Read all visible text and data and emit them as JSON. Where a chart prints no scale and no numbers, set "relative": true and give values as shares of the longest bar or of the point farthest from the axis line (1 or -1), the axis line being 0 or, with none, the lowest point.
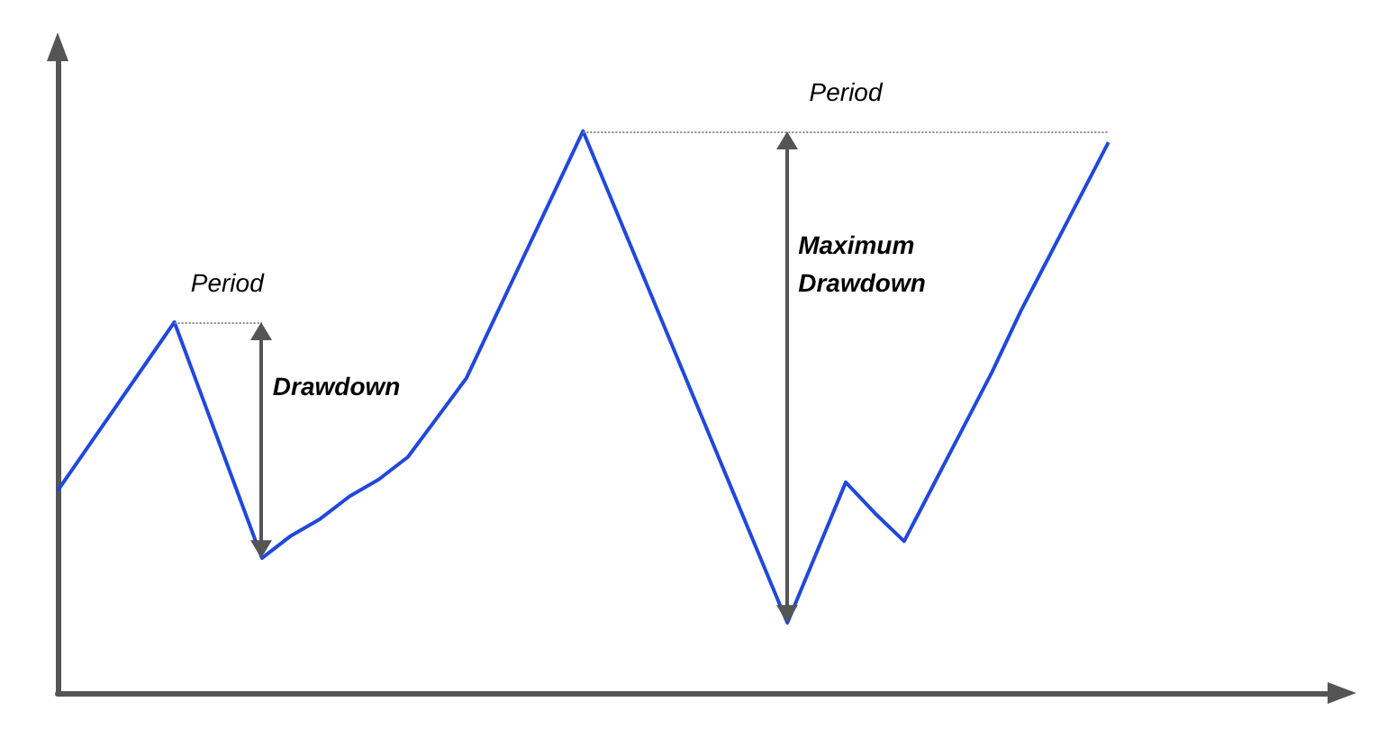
{
  "chart_data": {
    "type": "line",
    "relative": true,
    "grid": false,
    "marker": "none",
    "line_style": "solid",
    "categories": [
      null,
      null,
      null,
      null,
      null,
      null,
      null,
      null,
      null,
      null,
      null,
      null,
      null,
      null,
      null,
      null,
      null,
      null,
      null,
      null,
      null,
      null,
      null,
      null,
      null,
      null,
      null,
      null,
      null,
      null,
      null,
      null,
      null,
      null,
      null,
      null,
      null,
      null,
      null,
      null,
      null,
      null,
      null,
      null,
      null
    ],
    "series": [
      {
        "color": "#2148dc",
        "values": [
          0.36,
          0.435,
          0.51,
          0.585,
          0.66,
          0.52,
          0.38,
          0.24,
          0.28,
          0.31,
          0.35,
          0.38,
          0.42,
          0.49,
          0.56,
          0.67,
          0.78,
          0.89,
          1,
          0.875,
          0.75,
          0.625,
          0.5,
          0.375,
          0.25,
          0.125,
          0.25,
          0.375,
          0.32,
          0.27,
          0.37,
          0.47,
          0.57,
          0.68,
          0.78,
          0.88,
          0.98,
          null,
          null,
          null,
          null,
          null,
          null,
          null,
          null
        ]
      }
    ],
    "annotations": [
      "Period",
      "Drawdown",
      "Period",
      "Maximum\nDrawdown"
    ]
  }
}
